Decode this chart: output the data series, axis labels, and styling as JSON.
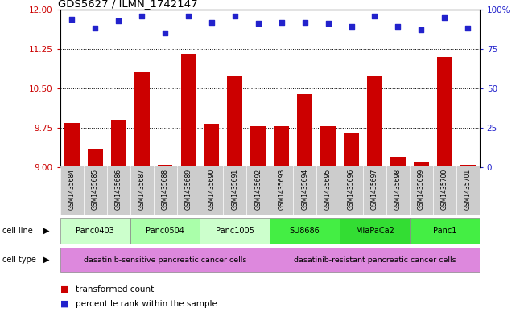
{
  "title": "GDS5627 / ILMN_1742147",
  "samples": [
    "GSM1435684",
    "GSM1435685",
    "GSM1435686",
    "GSM1435687",
    "GSM1435688",
    "GSM1435689",
    "GSM1435690",
    "GSM1435691",
    "GSM1435692",
    "GSM1435693",
    "GSM1435694",
    "GSM1435695",
    "GSM1435696",
    "GSM1435697",
    "GSM1435698",
    "GSM1435699",
    "GSM1435700",
    "GSM1435701"
  ],
  "bar_values": [
    9.85,
    9.35,
    9.9,
    10.8,
    9.05,
    11.15,
    9.83,
    10.75,
    9.78,
    9.78,
    10.4,
    9.78,
    9.65,
    10.75,
    9.2,
    9.1,
    11.1,
    9.05
  ],
  "percentile_values": [
    94,
    88,
    93,
    96,
    85,
    96,
    92,
    96,
    91,
    92,
    92,
    91,
    89,
    96,
    89,
    87,
    95,
    88
  ],
  "ylim_left": [
    9,
    12
  ],
  "ylim_right": [
    0,
    100
  ],
  "yticks_left": [
    9,
    9.75,
    10.5,
    11.25,
    12
  ],
  "yticks_right": [
    0,
    25,
    50,
    75,
    100
  ],
  "bar_color": "#cc0000",
  "dot_color": "#2222cc",
  "cell_lines": [
    {
      "name": "Panc0403",
      "start": 0,
      "end": 2,
      "color": "#ccffcc"
    },
    {
      "name": "Panc0504",
      "start": 3,
      "end": 5,
      "color": "#aaffaa"
    },
    {
      "name": "Panc1005",
      "start": 6,
      "end": 8,
      "color": "#ccffcc"
    },
    {
      "name": "SU8686",
      "start": 9,
      "end": 11,
      "color": "#44ee44"
    },
    {
      "name": "MiaPaCa2",
      "start": 12,
      "end": 14,
      "color": "#33dd33"
    },
    {
      "name": "Panc1",
      "start": 15,
      "end": 17,
      "color": "#44ee44"
    }
  ],
  "cell_type_sensitive": "dasatinib-sensitive pancreatic cancer cells",
  "cell_type_resistant": "dasatinib-resistant pancreatic cancer cells",
  "cell_type_color": "#dd88dd",
  "legend_bar_label": "transformed count",
  "legend_dot_label": "percentile rank within the sample",
  "tick_label_color_left": "#cc0000",
  "tick_label_color_right": "#2222cc",
  "grid_yticks": [
    9.75,
    10.5,
    11.25
  ],
  "sample_box_color": "#cccccc"
}
